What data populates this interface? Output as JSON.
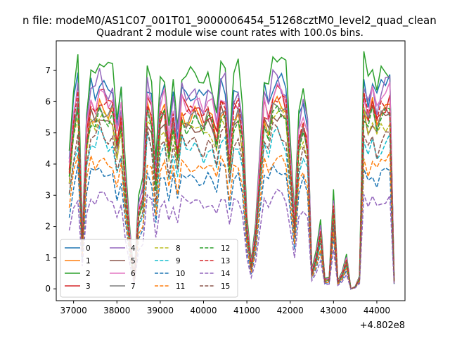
{
  "chart_data": {
    "type": "line",
    "suptitle": "n file: modeM0/AS1C07_001T01_9000006454_51268cztM0_level2_quad_clean",
    "title": "Quadrant 2 module wise count rates with 100.0s bins.",
    "xlabel": "",
    "ylabel": "",
    "x_offset_label": "+4.802e8",
    "xlim": [
      36600,
      44650
    ],
    "ylim": [
      -0.38,
      7.95
    ],
    "xticks": [
      37000,
      38000,
      39000,
      40000,
      41000,
      42000,
      43000,
      44000
    ],
    "xtick_labels": [
      "37000",
      "38000",
      "39000",
      "40000",
      "41000",
      "42000",
      "43000",
      "44000"
    ],
    "yticks": [
      0,
      1,
      2,
      3,
      4,
      5,
      6,
      7
    ],
    "ytick_labels": [
      "0",
      "1",
      "2",
      "3",
      "4",
      "5",
      "6",
      "7"
    ],
    "grid": false,
    "legend_position": "lower-left",
    "x": [
      36900,
      37000,
      37100,
      37200,
      37300,
      37400,
      37500,
      37600,
      37700,
      37800,
      37900,
      38000,
      38100,
      38200,
      38300,
      38400,
      38500,
      38600,
      38700,
      38800,
      38900,
      39000,
      39100,
      39200,
      39300,
      39400,
      39500,
      39600,
      39700,
      39800,
      39900,
      40000,
      40100,
      40200,
      40300,
      40400,
      40500,
      40600,
      40700,
      40800,
      40900,
      41000,
      41100,
      41200,
      41300,
      41400,
      41500,
      41600,
      41700,
      41800,
      41900,
      42000,
      42100,
      42200,
      42300,
      42400,
      42500,
      42600,
      42700,
      42800,
      42900,
      43000,
      43100,
      43200,
      43300,
      43400,
      43500,
      43600,
      43700,
      43800,
      43900,
      44000,
      44100,
      44200,
      44300,
      44400
    ],
    "base_profile": [
      0.6,
      0.84,
      0.98,
      0.24,
      0.78,
      0.945,
      0.91,
      0.985,
      0.955,
      0.92,
      0.935,
      0.745,
      0.88,
      0.52,
      0.26,
      0.05,
      0.4,
      0.47,
      0.96,
      0.89,
      0.54,
      0.89,
      0.93,
      0.72,
      0.895,
      0.71,
      0.94,
      0.9,
      0.905,
      0.92,
      0.895,
      0.86,
      0.92,
      0.89,
      0.785,
      0.965,
      0.95,
      0.655,
      0.905,
      0.93,
      0.78,
      0.32,
      0.12,
      0.28,
      0.62,
      0.925,
      0.86,
      0.975,
      0.99,
      0.97,
      0.93,
      0.65,
      0.325,
      0.77,
      0.86,
      0.76,
      0.085,
      0.165,
      0.295,
      0.045,
      0.05,
      0.42,
      0.035,
      0.075,
      0.15,
      0.0,
      0.01,
      0.055,
      0.97,
      0.875,
      0.955,
      0.86,
      0.935,
      0.95,
      0.97,
      0.04
    ],
    "series": [
      {
        "name": "0",
        "color": "#1f77b4",
        "dash": "solid",
        "level": 6.95
      },
      {
        "name": "1",
        "color": "#ff7f0e",
        "dash": "solid",
        "level": 6.05
      },
      {
        "name": "2",
        "color": "#2ca02c",
        "dash": "solid",
        "level": 7.45
      },
      {
        "name": "3",
        "color": "#d62728",
        "dash": "solid",
        "level": 6.3
      },
      {
        "name": "4",
        "color": "#9467bd",
        "dash": "solid",
        "level": 6.85
      },
      {
        "name": "5",
        "color": "#8c564b",
        "dash": "solid",
        "level": 5.8
      },
      {
        "name": "6",
        "color": "#e377c2",
        "dash": "solid",
        "level": 6.55
      },
      {
        "name": "7",
        "color": "#7f7f7f",
        "dash": "solid",
        "level": 5.95
      },
      {
        "name": "8",
        "color": "#bcbd22",
        "dash": "dashed",
        "level": 5.65
      },
      {
        "name": "9",
        "color": "#17becf",
        "dash": "dashed",
        "level": 4.95
      },
      {
        "name": "10",
        "color": "#1f77b4",
        "dash": "dashed",
        "level": 3.95
      },
      {
        "name": "11",
        "color": "#ff7f0e",
        "dash": "dashed",
        "level": 4.35
      },
      {
        "name": "12",
        "color": "#2ca02c",
        "dash": "dashed",
        "level": 5.85
      },
      {
        "name": "13",
        "color": "#d62728",
        "dash": "dashed",
        "level": 6.2
      },
      {
        "name": "14",
        "color": "#9467bd",
        "dash": "dashed",
        "level": 3.05
      },
      {
        "name": "15",
        "color": "#8c564b",
        "dash": "dashed",
        "level": 5.15
      }
    ]
  }
}
